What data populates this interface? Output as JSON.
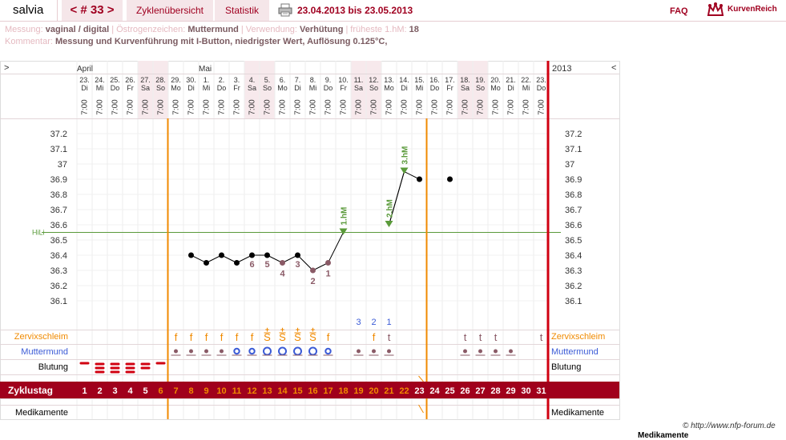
{
  "header": {
    "user": "salvia",
    "cycle": "< # 33 >",
    "overview": "Zyklenübersicht",
    "stats": "Statistik",
    "date_range": "23.04.2013 bis 23.05.2013",
    "faq": "FAQ",
    "logo": "KurvenReich"
  },
  "info": {
    "row1": [
      {
        "k": "Messung:",
        "v": "vaginal / digital"
      },
      {
        "k": "Östrogenzeichen:",
        "v": "Muttermund"
      },
      {
        "k": "Verwendung:",
        "v": "Verhütung"
      },
      {
        "k": "früheste 1.hM:",
        "v": "18"
      }
    ],
    "row2": [
      {
        "k": "Kommentar:",
        "v": "Messung und Kurvenführung mit I-Button, niedrigster Wert, Auflösung 0.125°C,"
      }
    ]
  },
  "chart": {
    "left_arrow": ">",
    "right_arrow": "<",
    "year": "2013",
    "months": [
      {
        "label": "April",
        "col": 0
      },
      {
        "label": "Mai",
        "col": 8
      }
    ],
    "days": [
      {
        "d": "23.",
        "w": "Di",
        "t": "7:00"
      },
      {
        "d": "24.",
        "w": "Mi",
        "t": "7:00"
      },
      {
        "d": "25.",
        "w": "Do",
        "t": "7:00"
      },
      {
        "d": "26.",
        "w": "Fr",
        "t": "7:00"
      },
      {
        "d": "27.",
        "w": "Sa",
        "t": "7:00"
      },
      {
        "d": "28.",
        "w": "So",
        "t": "7:00"
      },
      {
        "d": "29.",
        "w": "Mo",
        "t": "7:00"
      },
      {
        "d": "30.",
        "w": "Di",
        "t": "7:00"
      },
      {
        "d": "1.",
        "w": "Mi",
        "t": "7:00"
      },
      {
        "d": "2.",
        "w": "Do",
        "t": "7:00"
      },
      {
        "d": "3.",
        "w": "Fr",
        "t": "7:00"
      },
      {
        "d": "4.",
        "w": "Sa",
        "t": "7:00"
      },
      {
        "d": "5.",
        "w": "So",
        "t": "7:00"
      },
      {
        "d": "6.",
        "w": "Mo",
        "t": "7:00"
      },
      {
        "d": "7.",
        "w": "Di",
        "t": "7:00"
      },
      {
        "d": "8.",
        "w": "Mi",
        "t": "7:00"
      },
      {
        "d": "9.",
        "w": "Do",
        "t": "7:00"
      },
      {
        "d": "10.",
        "w": "Fr",
        "t": "7:00"
      },
      {
        "d": "11.",
        "w": "Sa",
        "t": "7:00"
      },
      {
        "d": "12.",
        "w": "So",
        "t": "7:00"
      },
      {
        "d": "13.",
        "w": "Mo",
        "t": "7:00"
      },
      {
        "d": "14.",
        "w": "Di",
        "t": "7:00"
      },
      {
        "d": "15.",
        "w": "Mi",
        "t": "7:00"
      },
      {
        "d": "16.",
        "w": "Do",
        "t": "7:00"
      },
      {
        "d": "17.",
        "w": "Fr",
        "t": "7:00"
      },
      {
        "d": "18.",
        "w": "Sa",
        "t": "7:00"
      },
      {
        "d": "19.",
        "w": "So",
        "t": "7:00"
      },
      {
        "d": "20.",
        "w": "Mo",
        "t": "7:00"
      },
      {
        "d": "21.",
        "w": "Di",
        "t": "7:00"
      },
      {
        "d": "22.",
        "w": "Mi",
        "t": "7:00"
      },
      {
        "d": "23.",
        "w": "Do",
        "t": "7:00"
      }
    ],
    "weekend_cols": [
      4,
      5,
      11,
      12,
      18,
      19,
      25,
      26
    ],
    "y_ticks": [
      "37.2",
      "37.1",
      "37",
      "36.9",
      "36.8",
      "36.7",
      "36.6",
      "36.5",
      "36.4",
      "36.3",
      "36.2",
      "36.1"
    ],
    "coverline": {
      "label": "HiLi",
      "value": 36.55
    },
    "temps": [
      null,
      null,
      null,
      null,
      null,
      null,
      null,
      36.4,
      36.35,
      36.4,
      36.35,
      36.4,
      36.4,
      36.35,
      36.4,
      36.3,
      36.35,
      36.55,
      null,
      null,
      36.6,
      36.95,
      36.9,
      null,
      36.9,
      null,
      null,
      null,
      null,
      null,
      null
    ],
    "low_labels": [
      {
        "col": 11,
        "text": "6"
      },
      {
        "col": 12,
        "text": "5"
      },
      {
        "col": 13,
        "text": "4"
      },
      {
        "col": 14,
        "text": "3"
      },
      {
        "col": 15,
        "text": "2"
      },
      {
        "col": 16,
        "text": "1"
      }
    ],
    "high_labels": [
      {
        "col": 17,
        "text": "1.hM"
      },
      {
        "col": 20,
        "text": "2.hM"
      },
      {
        "col": 21,
        "text": "3.hM"
      }
    ],
    "count_labels": [
      {
        "col": 18,
        "text": "3"
      },
      {
        "col": 19,
        "text": "2"
      },
      {
        "col": 20,
        "text": "1"
      }
    ],
    "cycle_marker_cols": [
      5,
      22
    ],
    "rows": {
      "cervical": "Zervixschleim",
      "cervix": "Muttermund",
      "bleeding": "Blutung",
      "cycleday": "Zyklustag",
      "meds": "Medikamente"
    },
    "cervical_marks": [
      null,
      null,
      null,
      null,
      null,
      null,
      "f",
      "f",
      "f",
      "f",
      "f",
      "f",
      "S+",
      "S+",
      "S+",
      "S+",
      "f",
      null,
      null,
      "f",
      "t",
      null,
      null,
      null,
      null,
      "t",
      "t",
      "t",
      null,
      null,
      "t"
    ],
    "cervix_marks": [
      null,
      null,
      null,
      null,
      null,
      null,
      "dot",
      "dot",
      "dot",
      "dot",
      "o",
      "o",
      "O",
      "O",
      "O",
      "O",
      "o",
      null,
      "dot",
      "dot",
      "dot",
      null,
      null,
      null,
      null,
      "dot",
      "dot",
      "dot",
      "dot",
      null,
      null
    ],
    "bleeding_marks": [
      1,
      3,
      3,
      3,
      2,
      1,
      0,
      0,
      0,
      0,
      0,
      0,
      0,
      0,
      0,
      0,
      0,
      0,
      0,
      0,
      0,
      0,
      0,
      0,
      0,
      0,
      0,
      0,
      0,
      0,
      0
    ],
    "cycle_days": [
      "1",
      "2",
      "3",
      "4",
      "5",
      "6",
      "7",
      "8",
      "9",
      "10",
      "11",
      "12",
      "13",
      "14",
      "15",
      "16",
      "17",
      "18",
      "19",
      "20",
      "21",
      "22",
      "23",
      "24",
      "25",
      "26",
      "27",
      "28",
      "29",
      "30",
      "31"
    ],
    "colors": {
      "accent": "#a00020",
      "orange": "#f08a00",
      "blue": "#3b5bd6",
      "mauve": "#8a5a66",
      "coverline": "#5a9a3a",
      "weekend": "#f7e9ec"
    }
  },
  "footer": {
    "copyright": "© http://www.nfp-forum.de",
    "cut_off": "Medikamente"
  }
}
